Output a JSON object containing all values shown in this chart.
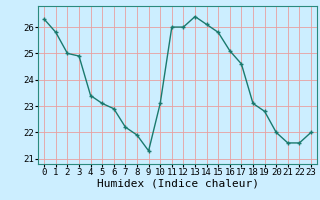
{
  "x": [
    0,
    1,
    2,
    3,
    4,
    5,
    6,
    7,
    8,
    9,
    10,
    11,
    12,
    13,
    14,
    15,
    16,
    17,
    18,
    19,
    20,
    21,
    22,
    23
  ],
  "y": [
    26.3,
    25.8,
    25.0,
    24.9,
    23.4,
    23.1,
    22.9,
    22.2,
    21.9,
    21.3,
    23.1,
    26.0,
    26.0,
    26.4,
    26.1,
    25.8,
    25.1,
    24.6,
    23.1,
    22.8,
    22.0,
    21.6,
    21.6,
    22.0
  ],
  "line_color": "#1a7a6e",
  "marker": "+",
  "marker_size": 3.5,
  "linewidth": 1.0,
  "xlabel": "Humidex (Indice chaleur)",
  "xlabel_fontsize": 8,
  "ylim": [
    20.8,
    26.8
  ],
  "xlim": [
    -0.5,
    23.5
  ],
  "yticks": [
    21,
    22,
    23,
    24,
    25,
    26
  ],
  "xticks": [
    0,
    1,
    2,
    3,
    4,
    5,
    6,
    7,
    8,
    9,
    10,
    11,
    12,
    13,
    14,
    15,
    16,
    17,
    18,
    19,
    20,
    21,
    22,
    23
  ],
  "background_color": "#cceeff",
  "grid_color": "#e8a0a0",
  "tick_fontsize": 6.5,
  "markeredgewidth": 1.0
}
